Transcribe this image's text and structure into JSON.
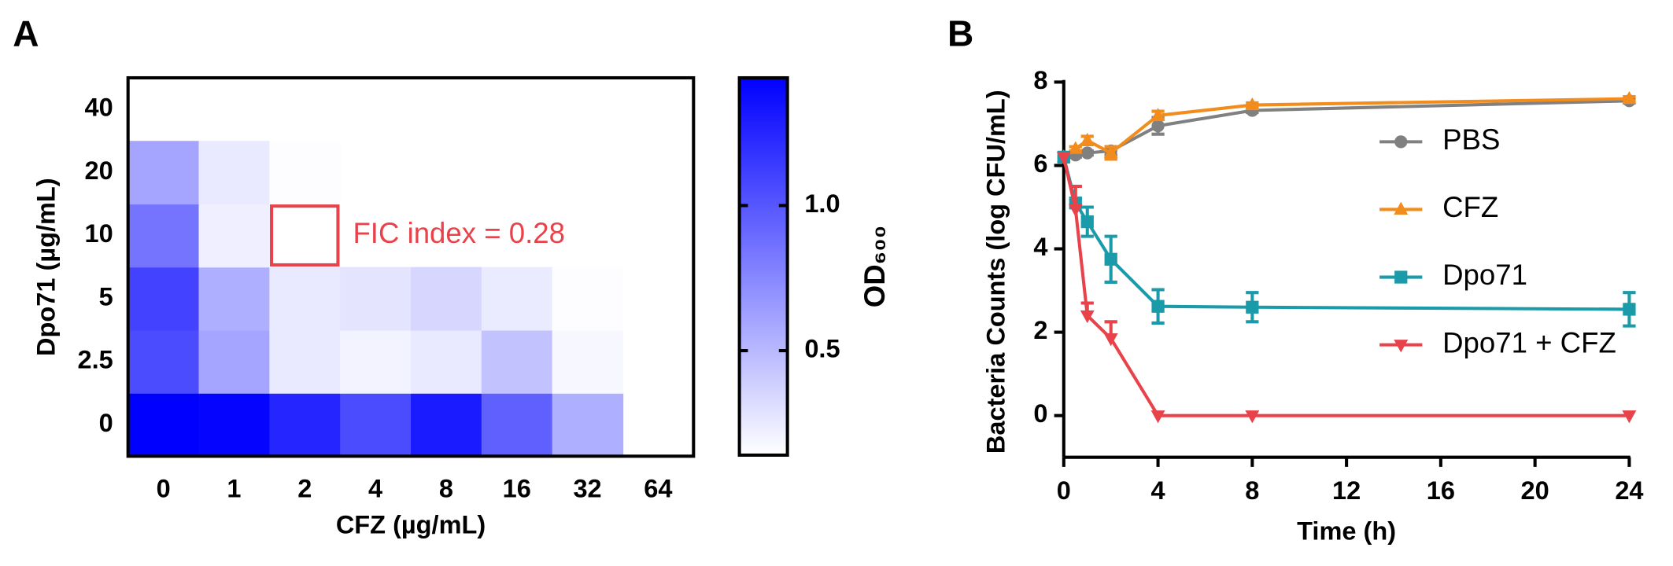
{
  "chart_data": [
    {
      "type": "heatmap",
      "panel": "A",
      "x_categories": [
        "0",
        "1",
        "2",
        "4",
        "8",
        "16",
        "32",
        "64"
      ],
      "y_categories": [
        "0",
        "2.5",
        "5",
        "10",
        "20",
        "40"
      ],
      "xlabel": "CFZ (µg/mL)",
      "ylabel": "Dpo71 (µg/mL)",
      "z": [
        [
          1.44,
          1.42,
          1.25,
          1.05,
          1.3,
          0.95,
          0.55,
          null
        ],
        [
          1.05,
          0.6,
          0.25,
          0.2,
          0.25,
          0.45,
          0.18,
          null
        ],
        [
          1.1,
          0.55,
          0.25,
          0.28,
          0.35,
          0.24,
          0.15,
          null
        ],
        [
          0.85,
          0.22,
          null,
          null,
          null,
          null,
          null,
          null
        ],
        [
          0.6,
          0.25,
          0.15,
          null,
          null,
          null,
          null,
          null
        ],
        [
          null,
          null,
          null,
          null,
          null,
          null,
          null,
          null
        ]
      ],
      "colormap": [
        "#ffffff",
        "#0000ff"
      ],
      "clim": [
        0.14,
        1.44
      ],
      "colorbar_label": "OD₆₀₀",
      "colorbar_ticks": [
        0.5,
        {
          "value": 1.0,
          "label": "1.0"
        }
      ],
      "annotation": "FIC index = 0.28",
      "annotation_color": "#e8424a"
    },
    {
      "type": "line",
      "panel": "B",
      "xlabel": "Time (h)",
      "ylabel": "Bacteria Counts (log CFU/mL)",
      "x": [
        0,
        0.5,
        1,
        2,
        4,
        8,
        24
      ],
      "xlim": [
        0,
        24
      ],
      "xticks": [
        0,
        4,
        8,
        12,
        16,
        20,
        24
      ],
      "ylim": [
        -1,
        8
      ],
      "yticks": [
        0,
        2,
        4,
        6,
        8
      ],
      "series": [
        {
          "name": "PBS",
          "color": "#808080",
          "marker": "circle",
          "error_bars": "both",
          "values": [
            6.2,
            6.25,
            6.3,
            6.35,
            6.95,
            7.32,
            7.55
          ],
          "errors": [
            0,
            0.05,
            0.05,
            0.1,
            0.2,
            0.05,
            0.05
          ]
        },
        {
          "name": "CFZ",
          "color": "#f28c1c",
          "marker": "triangle",
          "error_bars": "both",
          "values": [
            6.2,
            6.4,
            6.6,
            6.3,
            7.2,
            7.45,
            7.6
          ],
          "errors": [
            0,
            0.05,
            0.1,
            0.15,
            0.1,
            0.05,
            0.05
          ]
        },
        {
          "name": "Dpo71",
          "color": "#1b9aaa",
          "marker": "square",
          "error_bars": "both",
          "values": [
            6.2,
            5.1,
            4.65,
            3.75,
            2.62,
            2.6,
            2.55
          ],
          "errors": [
            0,
            0.1,
            0.35,
            0.55,
            0.4,
            0.35,
            0.4
          ]
        },
        {
          "name": "Dpo71 + CFZ",
          "color": "#e8424a",
          "marker": "triangle-down",
          "error_bars": "up",
          "values": [
            6.2,
            4.95,
            2.4,
            1.85,
            0,
            0,
            0
          ],
          "errors": [
            0,
            0.55,
            0.3,
            0.4,
            0,
            0,
            0
          ]
        }
      ]
    }
  ]
}
